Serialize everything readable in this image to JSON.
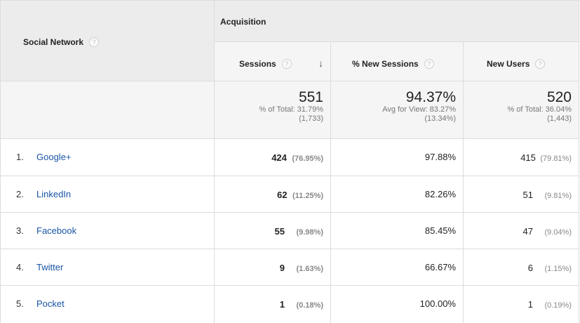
{
  "header": {
    "dimension_label": "Social Network",
    "group_label": "Acquisition",
    "help_glyph": "?",
    "sort_glyph": "↓",
    "columns": [
      {
        "label": "Sessions"
      },
      {
        "label": "% New Sessions"
      },
      {
        "label": "New Users"
      }
    ]
  },
  "totals": {
    "sessions": {
      "value": "551",
      "line1": "% of Total: 31.79%",
      "line2": "(1,733)"
    },
    "new_sessions": {
      "value": "94.37%",
      "line1": "Avg for View: 83.27%",
      "line2": "(13.34%)"
    },
    "new_users": {
      "value": "520",
      "line1": "% of Total: 36.04%",
      "line2": "(1,443)"
    }
  },
  "rows": [
    {
      "rank": "1.",
      "network": "Google+",
      "sessions": "424",
      "sessions_pct": "(76.95%)",
      "new_sessions": "97.88%",
      "new_users": "415",
      "new_users_pct": "(79.81%)"
    },
    {
      "rank": "2.",
      "network": "LinkedIn",
      "sessions": "62",
      "sessions_pct": "(11.25%)",
      "new_sessions": "82.26%",
      "new_users": "51",
      "new_users_pct": "(9.81%)"
    },
    {
      "rank": "3.",
      "network": "Facebook",
      "sessions": "55",
      "sessions_pct": "(9.98%)",
      "new_sessions": "85.45%",
      "new_users": "47",
      "new_users_pct": "(9.04%)"
    },
    {
      "rank": "4.",
      "network": "Twitter",
      "sessions": "9",
      "sessions_pct": "(1.63%)",
      "new_sessions": "66.67%",
      "new_users": "6",
      "new_users_pct": "(1.15%)"
    },
    {
      "rank": "5.",
      "network": "Pocket",
      "sessions": "1",
      "sessions_pct": "(0.18%)",
      "new_sessions": "100.00%",
      "new_users": "1",
      "new_users_pct": "(0.19%)"
    }
  ],
  "colors": {
    "link": "#1a55a4",
    "header_bg": "#ececec",
    "border": "#dcdcdc"
  }
}
